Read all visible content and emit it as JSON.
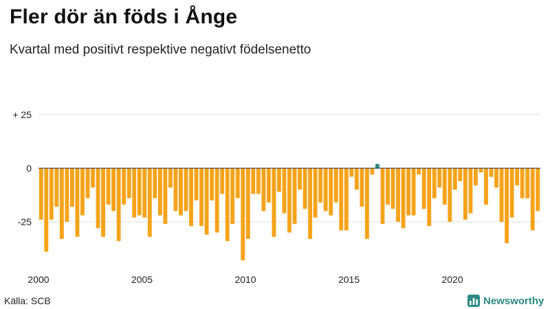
{
  "header": {
    "title": "Fler dör än föds i Ånge",
    "subtitle": "Kvartal med positivt respektive negativt födelsenetto"
  },
  "footer": {
    "source": "Källa: SCB",
    "brand": "Newsworthy"
  },
  "colors": {
    "negative": "#f5a31a",
    "positive": "#2e8c86",
    "grid": "#dddddd",
    "zero_line": "#222222",
    "brand": "#2e8c86"
  },
  "chart_data": {
    "type": "bar",
    "title": "Fler dör än föds i Ånge",
    "subtitle": "Kvartal med positivt respektive negativt födelsenetto",
    "xlabel": "",
    "ylabel": "",
    "ylim": [
      -45,
      30
    ],
    "x_start_year": 2000,
    "periods_per_year": 4,
    "y_ticks": [
      {
        "value": 25,
        "label": "+ 25"
      },
      {
        "value": 0,
        "label": "0"
      },
      {
        "value": -25,
        "label": "-25"
      }
    ],
    "x_ticks": [
      {
        "year": 2000,
        "label": "2000"
      },
      {
        "year": 2005,
        "label": "2005"
      },
      {
        "year": 2010,
        "label": "2010"
      },
      {
        "year": 2015,
        "label": "2015"
      },
      {
        "year": 2020,
        "label": "2020"
      }
    ],
    "values": [
      -24,
      -39,
      -24,
      -18,
      -33,
      -25,
      -18,
      -32,
      -22,
      -14,
      -9,
      -28,
      -32,
      -17,
      -20,
      -34,
      -17,
      -14,
      -23,
      -22,
      -23,
      -32,
      -14,
      -22,
      -26,
      -9,
      -20,
      -22,
      -20,
      -27,
      -15,
      -27,
      -31,
      -15,
      -30,
      -12,
      -34,
      -26,
      -14,
      -43,
      -33,
      -12,
      -12,
      -20,
      -16,
      -32,
      -11,
      -21,
      -30,
      -26,
      -10,
      -19,
      -33,
      -23,
      -16,
      -20,
      -22,
      -16,
      -29,
      -29,
      -4,
      -10,
      -18,
      -33,
      -3,
      2,
      -26,
      -17,
      -19,
      -25,
      -28,
      -22,
      -22,
      -3,
      -19,
      -27,
      -14,
      -9,
      -17,
      -25,
      -10,
      -6,
      -24,
      -21,
      -8,
      -2,
      -17,
      -4,
      -9,
      -25,
      -35,
      -23,
      -8,
      -14,
      -14,
      -29,
      -20
    ]
  }
}
